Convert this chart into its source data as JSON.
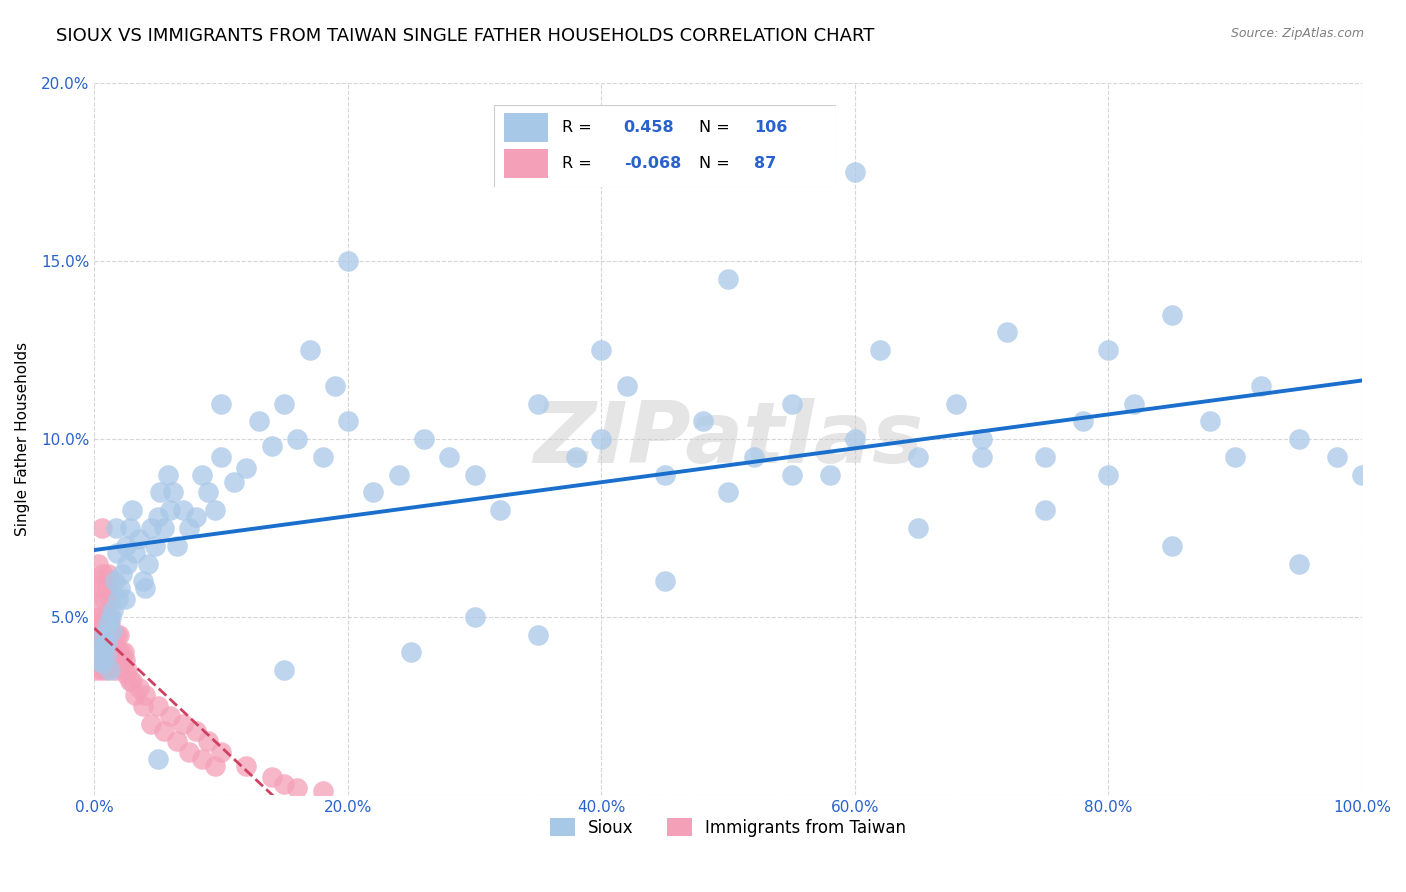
{
  "title": "SIOUX VS IMMIGRANTS FROM TAIWAN SINGLE FATHER HOUSEHOLDS CORRELATION CHART",
  "source": "Source: ZipAtlas.com",
  "ylabel": "Single Father Households",
  "xlabel": "",
  "watermark": "ZIPatlas",
  "sioux_R": 0.458,
  "sioux_N": 106,
  "taiwan_R": -0.068,
  "taiwan_N": 87,
  "sioux_color": "#a8c8e8",
  "sioux_line_color": "#1a6fcc",
  "taiwan_color": "#f4a0b8",
  "taiwan_line_color": "#d04060",
  "background_color": "#ffffff",
  "grid_color": "#cccccc",
  "xlim": [
    0,
    100
  ],
  "ylim": [
    0,
    20
  ],
  "xticks": [
    0,
    20,
    40,
    60,
    80,
    100
  ],
  "yticks": [
    0,
    5,
    10,
    15,
    20
  ],
  "xtick_labels": [
    "0.0%",
    "20.0%",
    "40.0%",
    "60.0%",
    "80.0%",
    "100.0%"
  ],
  "ytick_labels": [
    "",
    "5.0%",
    "10.0%",
    "15.0%",
    "20.0%"
  ],
  "title_fontsize": 13,
  "axis_label_fontsize": 11,
  "tick_fontsize": 11,
  "tick_color": "#2962cc",
  "sioux_x": [
    0.3,
    0.4,
    0.5,
    0.6,
    0.7,
    0.8,
    0.9,
    1.0,
    1.1,
    1.2,
    1.3,
    1.4,
    1.5,
    1.6,
    1.7,
    1.8,
    1.9,
    2.0,
    2.2,
    2.4,
    2.5,
    2.6,
    2.8,
    3.0,
    3.2,
    3.5,
    3.8,
    4.0,
    4.2,
    4.5,
    4.8,
    5.0,
    5.2,
    5.5,
    5.8,
    6.0,
    6.2,
    6.5,
    7.0,
    7.5,
    8.0,
    8.5,
    9.0,
    9.5,
    10.0,
    11.0,
    12.0,
    13.0,
    14.0,
    15.0,
    16.0,
    17.0,
    18.0,
    19.0,
    20.0,
    22.0,
    24.0,
    26.0,
    28.0,
    30.0,
    32.0,
    35.0,
    38.0,
    40.0,
    42.0,
    45.0,
    48.0,
    50.0,
    52.0,
    55.0,
    58.0,
    60.0,
    62.0,
    65.0,
    68.0,
    70.0,
    72.0,
    75.0,
    78.0,
    80.0,
    82.0,
    85.0,
    88.0,
    90.0,
    92.0,
    95.0,
    98.0,
    100.0,
    60.0,
    70.0,
    50.0,
    40.0,
    80.0,
    20.0,
    10.0,
    30.0,
    65.0,
    75.0,
    85.0,
    95.0,
    55.0,
    45.0,
    35.0,
    25.0,
    15.0,
    5.0
  ],
  "sioux_y": [
    3.8,
    4.1,
    4.0,
    3.7,
    4.5,
    4.2,
    3.9,
    4.3,
    4.8,
    3.5,
    5.0,
    4.6,
    5.2,
    6.0,
    7.5,
    6.8,
    5.5,
    5.8,
    6.2,
    5.5,
    7.0,
    6.5,
    7.5,
    8.0,
    6.8,
    7.2,
    6.0,
    5.8,
    6.5,
    7.5,
    7.0,
    7.8,
    8.5,
    7.5,
    9.0,
    8.0,
    8.5,
    7.0,
    8.0,
    7.5,
    7.8,
    9.0,
    8.5,
    8.0,
    9.5,
    8.8,
    9.2,
    10.5,
    9.8,
    11.0,
    10.0,
    12.5,
    9.5,
    11.5,
    10.5,
    8.5,
    9.0,
    10.0,
    9.5,
    9.0,
    8.0,
    11.0,
    9.5,
    10.0,
    11.5,
    9.0,
    10.5,
    8.5,
    9.5,
    11.0,
    9.0,
    10.0,
    12.5,
    9.5,
    11.0,
    10.0,
    13.0,
    9.5,
    10.5,
    9.0,
    11.0,
    13.5,
    10.5,
    9.5,
    11.5,
    10.0,
    9.5,
    9.0,
    17.5,
    9.5,
    14.5,
    12.5,
    12.5,
    15.0,
    11.0,
    5.0,
    7.5,
    8.0,
    7.0,
    6.5,
    9.0,
    6.0,
    4.5,
    4.0,
    3.5,
    1.0
  ],
  "taiwan_x": [
    0.1,
    0.15,
    0.2,
    0.25,
    0.3,
    0.35,
    0.4,
    0.45,
    0.5,
    0.55,
    0.6,
    0.65,
    0.7,
    0.75,
    0.8,
    0.85,
    0.9,
    0.95,
    1.0,
    1.1,
    1.2,
    1.3,
    1.4,
    1.5,
    1.6,
    1.8,
    2.0,
    2.5,
    3.0,
    3.5,
    4.0,
    5.0,
    6.0,
    7.0,
    8.0,
    9.0,
    10.0,
    12.0,
    14.0,
    15.0,
    16.0,
    18.0,
    0.2,
    0.3,
    0.4,
    0.5,
    0.6,
    0.7,
    0.8,
    0.9,
    1.0,
    1.1,
    1.2,
    1.3,
    0.15,
    0.25,
    0.35,
    0.45,
    0.55,
    0.65,
    0.75,
    0.85,
    0.95,
    1.05,
    1.15,
    1.25,
    1.35,
    1.45,
    1.55,
    1.65,
    1.75,
    1.85,
    1.95,
    2.1,
    2.2,
    2.3,
    2.4,
    2.6,
    2.8,
    3.2,
    3.8,
    4.5,
    5.5,
    6.5,
    7.5,
    8.5,
    9.5
  ],
  "taiwan_y": [
    3.5,
    3.8,
    4.0,
    3.7,
    3.9,
    4.1,
    3.6,
    4.2,
    3.8,
    3.5,
    4.0,
    3.7,
    3.9,
    4.1,
    3.6,
    3.8,
    4.3,
    3.5,
    4.0,
    3.8,
    4.1,
    3.6,
    3.9,
    4.2,
    3.5,
    3.8,
    3.6,
    3.4,
    3.2,
    3.0,
    2.8,
    2.5,
    2.2,
    2.0,
    1.8,
    1.5,
    1.2,
    0.8,
    0.5,
    0.3,
    0.2,
    0.1,
    5.5,
    6.5,
    5.8,
    6.0,
    7.5,
    6.2,
    5.5,
    6.0,
    5.8,
    6.2,
    5.5,
    6.0,
    4.5,
    5.0,
    4.8,
    4.5,
    5.0,
    4.8,
    4.5,
    5.0,
    4.8,
    4.5,
    5.0,
    4.8,
    4.5,
    4.0,
    4.5,
    4.0,
    4.5,
    4.0,
    4.5,
    4.0,
    3.8,
    4.0,
    3.8,
    3.5,
    3.2,
    2.8,
    2.5,
    2.0,
    1.8,
    1.5,
    1.2,
    1.0,
    0.8
  ]
}
